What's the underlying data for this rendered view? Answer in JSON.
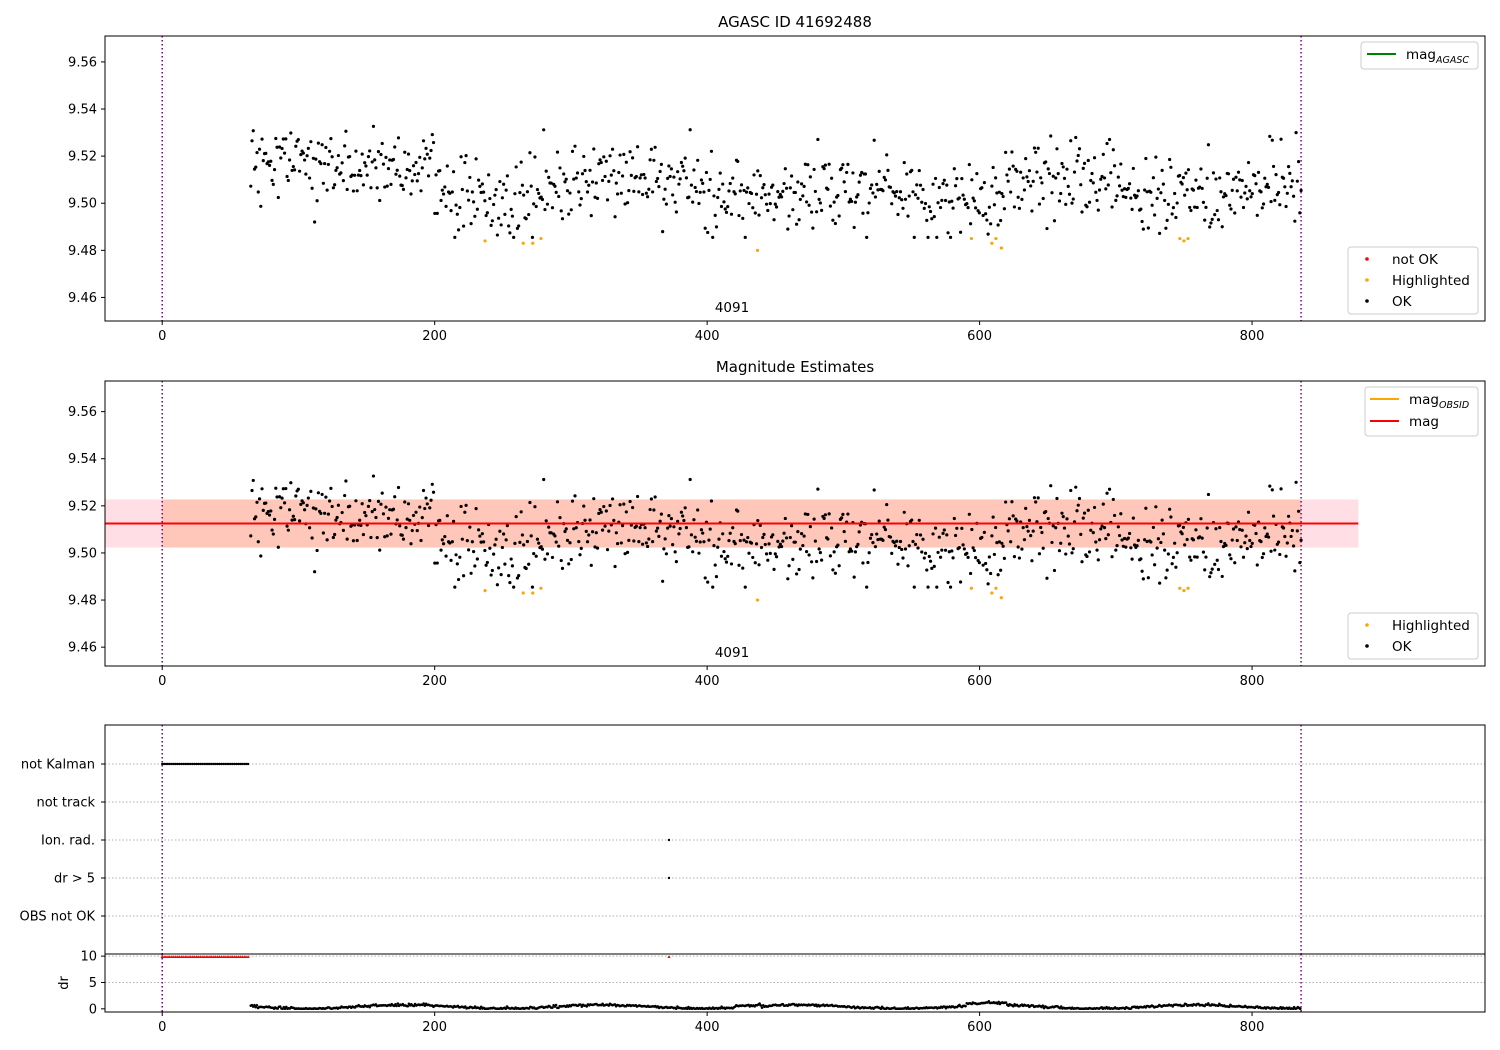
{
  "chart_data": [
    {
      "type": "scatter",
      "title": "AGASC ID 41692488",
      "xlim": [
        -42,
        971
      ],
      "ylim": [
        9.45,
        9.571
      ],
      "xticks": [
        0,
        200,
        400,
        600,
        800
      ],
      "yticks": [
        9.46,
        9.48,
        9.5,
        9.52,
        9.54,
        9.56
      ],
      "obsid_bounds": [
        0,
        836
      ],
      "annotation": {
        "text": "4091",
        "x": 418,
        "y": 9.451
      },
      "legend_lines": [
        {
          "label": "mag",
          "sub": "AGASC",
          "color": "#008000"
        }
      ],
      "legend_points": [
        {
          "label": "not OK",
          "color": "#ff0000"
        },
        {
          "label": "Highlighted",
          "color": "#ffa500"
        },
        {
          "label": "OK",
          "color": "#000000"
        }
      ],
      "series": [
        {
          "name": "OK",
          "color": "#000000",
          "x_range": [
            65,
            836
          ],
          "n": 840,
          "baseline": 9.508,
          "spread": 0.0105,
          "segments": [
            [
              65,
              100,
              9.514
            ],
            [
              100,
              200,
              9.515
            ],
            [
              200,
              240,
              9.506
            ],
            [
              240,
              280,
              9.497
            ],
            [
              280,
              320,
              9.508
            ],
            [
              320,
              400,
              9.511
            ],
            [
              400,
              470,
              9.503
            ],
            [
              470,
              560,
              9.507
            ],
            [
              560,
              620,
              9.5
            ],
            [
              620,
              700,
              9.51
            ],
            [
              700,
              760,
              9.504
            ],
            [
              760,
              836,
              9.505
            ]
          ]
        },
        {
          "name": "Highlighted",
          "color": "#ffa500",
          "points": [
            [
              237,
              9.484
            ],
            [
              265,
              9.483
            ],
            [
              272,
              9.483
            ],
            [
              278,
              9.485
            ],
            [
              437,
              9.48
            ],
            [
              594,
              9.485
            ],
            [
              609,
              9.483
            ],
            [
              612,
              9.485
            ],
            [
              616,
              9.481
            ],
            [
              747,
              9.485
            ],
            [
              750,
              9.484
            ],
            [
              753,
              9.485
            ]
          ]
        },
        {
          "name": "not OK",
          "color": "#ff0000",
          "points": []
        }
      ]
    },
    {
      "type": "scatter",
      "title": "Magnitude Estimates",
      "xlim": [
        -42,
        971
      ],
      "ylim": [
        9.452,
        9.573
      ],
      "xticks": [
        0,
        200,
        400,
        600,
        800
      ],
      "yticks": [
        9.46,
        9.48,
        9.5,
        9.52,
        9.54,
        9.56
      ],
      "obsid_bounds": [
        0,
        836
      ],
      "annotation": {
        "text": "4091",
        "x": 418,
        "y": 9.453
      },
      "mag": 9.5125,
      "mag_band": [
        9.5023,
        9.5227
      ],
      "band_xrange": [
        -42,
        878
      ],
      "mag_obsid_band": [
        9.5023,
        9.5227
      ],
      "mag_obsid_band_xrange": [
        0,
        836
      ],
      "legend_lines": [
        {
          "label": "mag",
          "sub": "OBSID",
          "color": "#ffa500"
        },
        {
          "label": "mag",
          "sub": "",
          "color": "#ff0000"
        }
      ],
      "legend_points": [
        {
          "label": "Highlighted",
          "color": "#ffa500"
        },
        {
          "label": "OK",
          "color": "#000000"
        }
      ],
      "series": [
        {
          "name": "OK",
          "same_as": "panel-1"
        },
        {
          "name": "Highlighted",
          "same_as": "panel-1"
        }
      ]
    },
    {
      "type": "scatter",
      "title": "",
      "xlim": [
        -42,
        971
      ],
      "xticks": [
        0,
        200,
        400,
        600,
        800
      ],
      "categories": [
        "not Kalman",
        "not track",
        "Ion. rad.",
        "dr > 5",
        "OBS not OK"
      ],
      "obsid_bounds": [
        0,
        836
      ],
      "flags": [
        {
          "category": "not Kalman",
          "x_range": [
            0,
            63
          ],
          "color": "#000000"
        },
        {
          "category": "Ion. rad.",
          "x": [
            372
          ],
          "color": "#000000"
        },
        {
          "category": "dr > 5",
          "x": [
            372
          ],
          "color": "#000000"
        }
      ]
    },
    {
      "type": "scatter",
      "title": "",
      "ylabel": "dr",
      "xlim": [
        -42,
        971
      ],
      "ylim": [
        -0.6,
        10.4
      ],
      "xticks": [
        0,
        200,
        400,
        600,
        800
      ],
      "yticks": [
        0,
        5,
        10
      ],
      "obsid_bounds": [
        0,
        836
      ],
      "series": [
        {
          "name": "dr clipped",
          "color": "#ff0000",
          "x_range": [
            0,
            63
          ],
          "y": 9.9,
          "extra_x": [
            372
          ]
        },
        {
          "name": "dr",
          "color": "#000000",
          "x_range": [
            65,
            836
          ],
          "baseline": 0.4,
          "spread": 0.25
        }
      ]
    }
  ]
}
